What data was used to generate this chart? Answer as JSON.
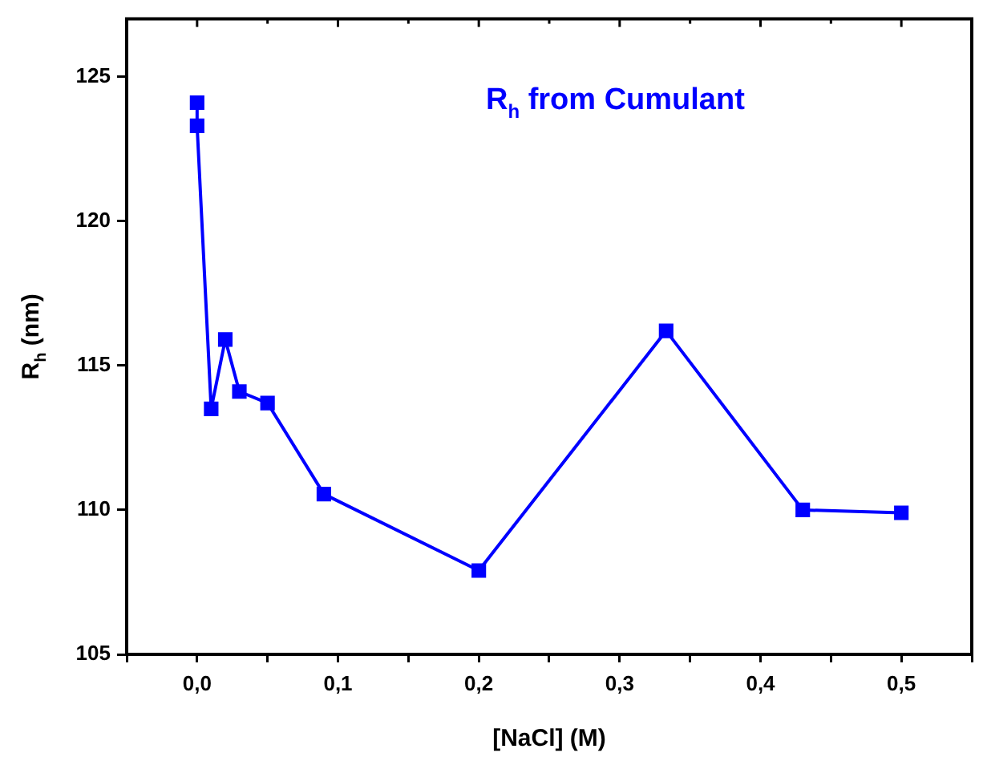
{
  "chart_data": {
    "type": "line",
    "xlabel": "[NaCl] (M)",
    "ylabel": "R$_{h}$ (nm)",
    "annotations": [
      "R$_{h}$ from Cumulant"
    ],
    "x": [
      0,
      0,
      0.01,
      0.02,
      0.03,
      0.05,
      0.09,
      0.2,
      0.333,
      0.43,
      0.5
    ],
    "series": [
      {
        "color": "#0000ff",
        "values": [
          124.1,
          123.3,
          113.5,
          115.9,
          114.1,
          113.7,
          110.55,
          107.9,
          116.2,
          110.0,
          109.9
        ]
      }
    ],
    "xlim": [
      -0.05,
      0.55
    ],
    "xticks": [
      {
        "value": -0.05,
        "label": null
      },
      {
        "value": 0,
        "label": "0,0"
      },
      {
        "value": 0.05,
        "label": null
      },
      {
        "value": 0.1,
        "label": "0,1"
      },
      {
        "value": 0.15,
        "label": null
      },
      {
        "value": 0.2,
        "label": "0,2"
      },
      {
        "value": 0.25,
        "label": null
      },
      {
        "value": 0.3,
        "label": "0,3"
      },
      {
        "value": 0.35,
        "label": null
      },
      {
        "value": 0.4,
        "label": "0,4"
      },
      {
        "value": 0.45,
        "label": null
      },
      {
        "value": 0.5,
        "label": "0,5"
      },
      {
        "value": 0.55,
        "label": null
      }
    ],
    "ylim": [
      105,
      127
    ],
    "yticks": [
      105,
      110,
      115,
      120,
      125
    ],
    "grid": false,
    "legend": false,
    "marker": "square",
    "line_style": "solid"
  }
}
